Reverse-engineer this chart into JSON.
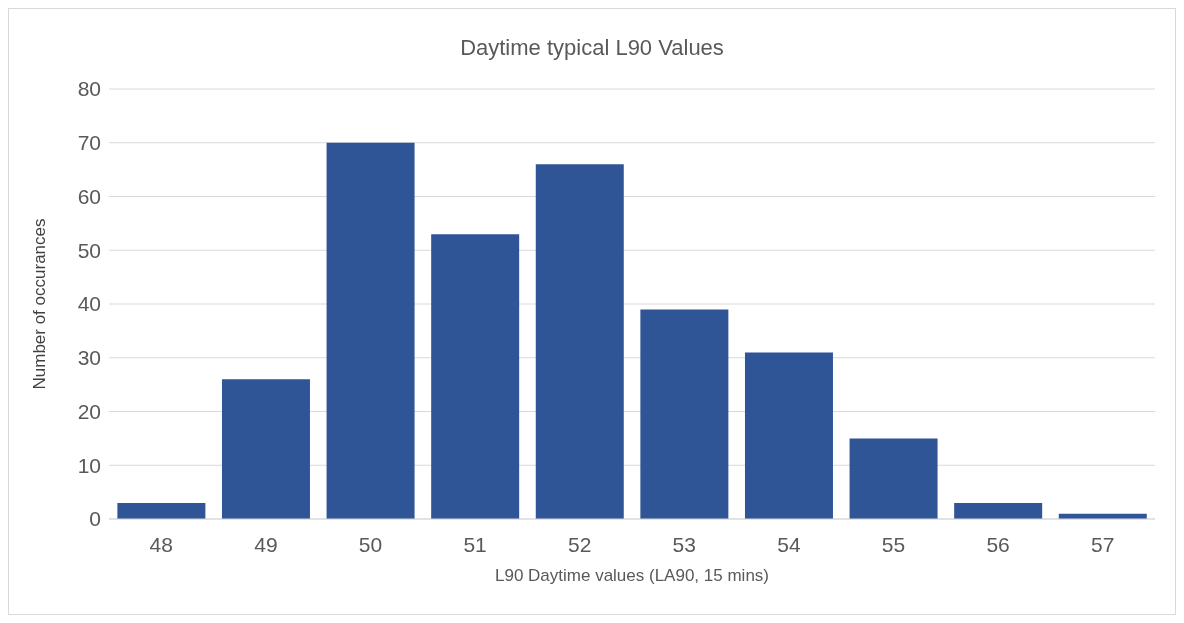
{
  "chart_data": {
    "type": "bar",
    "title": "Daytime typical L90 Values",
    "xlabel": "L90 Daytime values (LA90, 15 mins)",
    "ylabel": "Number of occurances",
    "categories": [
      "48",
      "49",
      "50",
      "51",
      "52",
      "53",
      "54",
      "55",
      "56",
      "57"
    ],
    "values": [
      3,
      26,
      70,
      53,
      66,
      39,
      31,
      15,
      3,
      1
    ],
    "color": "#2f5597",
    "ylim": [
      0,
      80
    ],
    "yticks": [
      0,
      10,
      20,
      30,
      40,
      50,
      60,
      70,
      80
    ],
    "grid": "y"
  }
}
